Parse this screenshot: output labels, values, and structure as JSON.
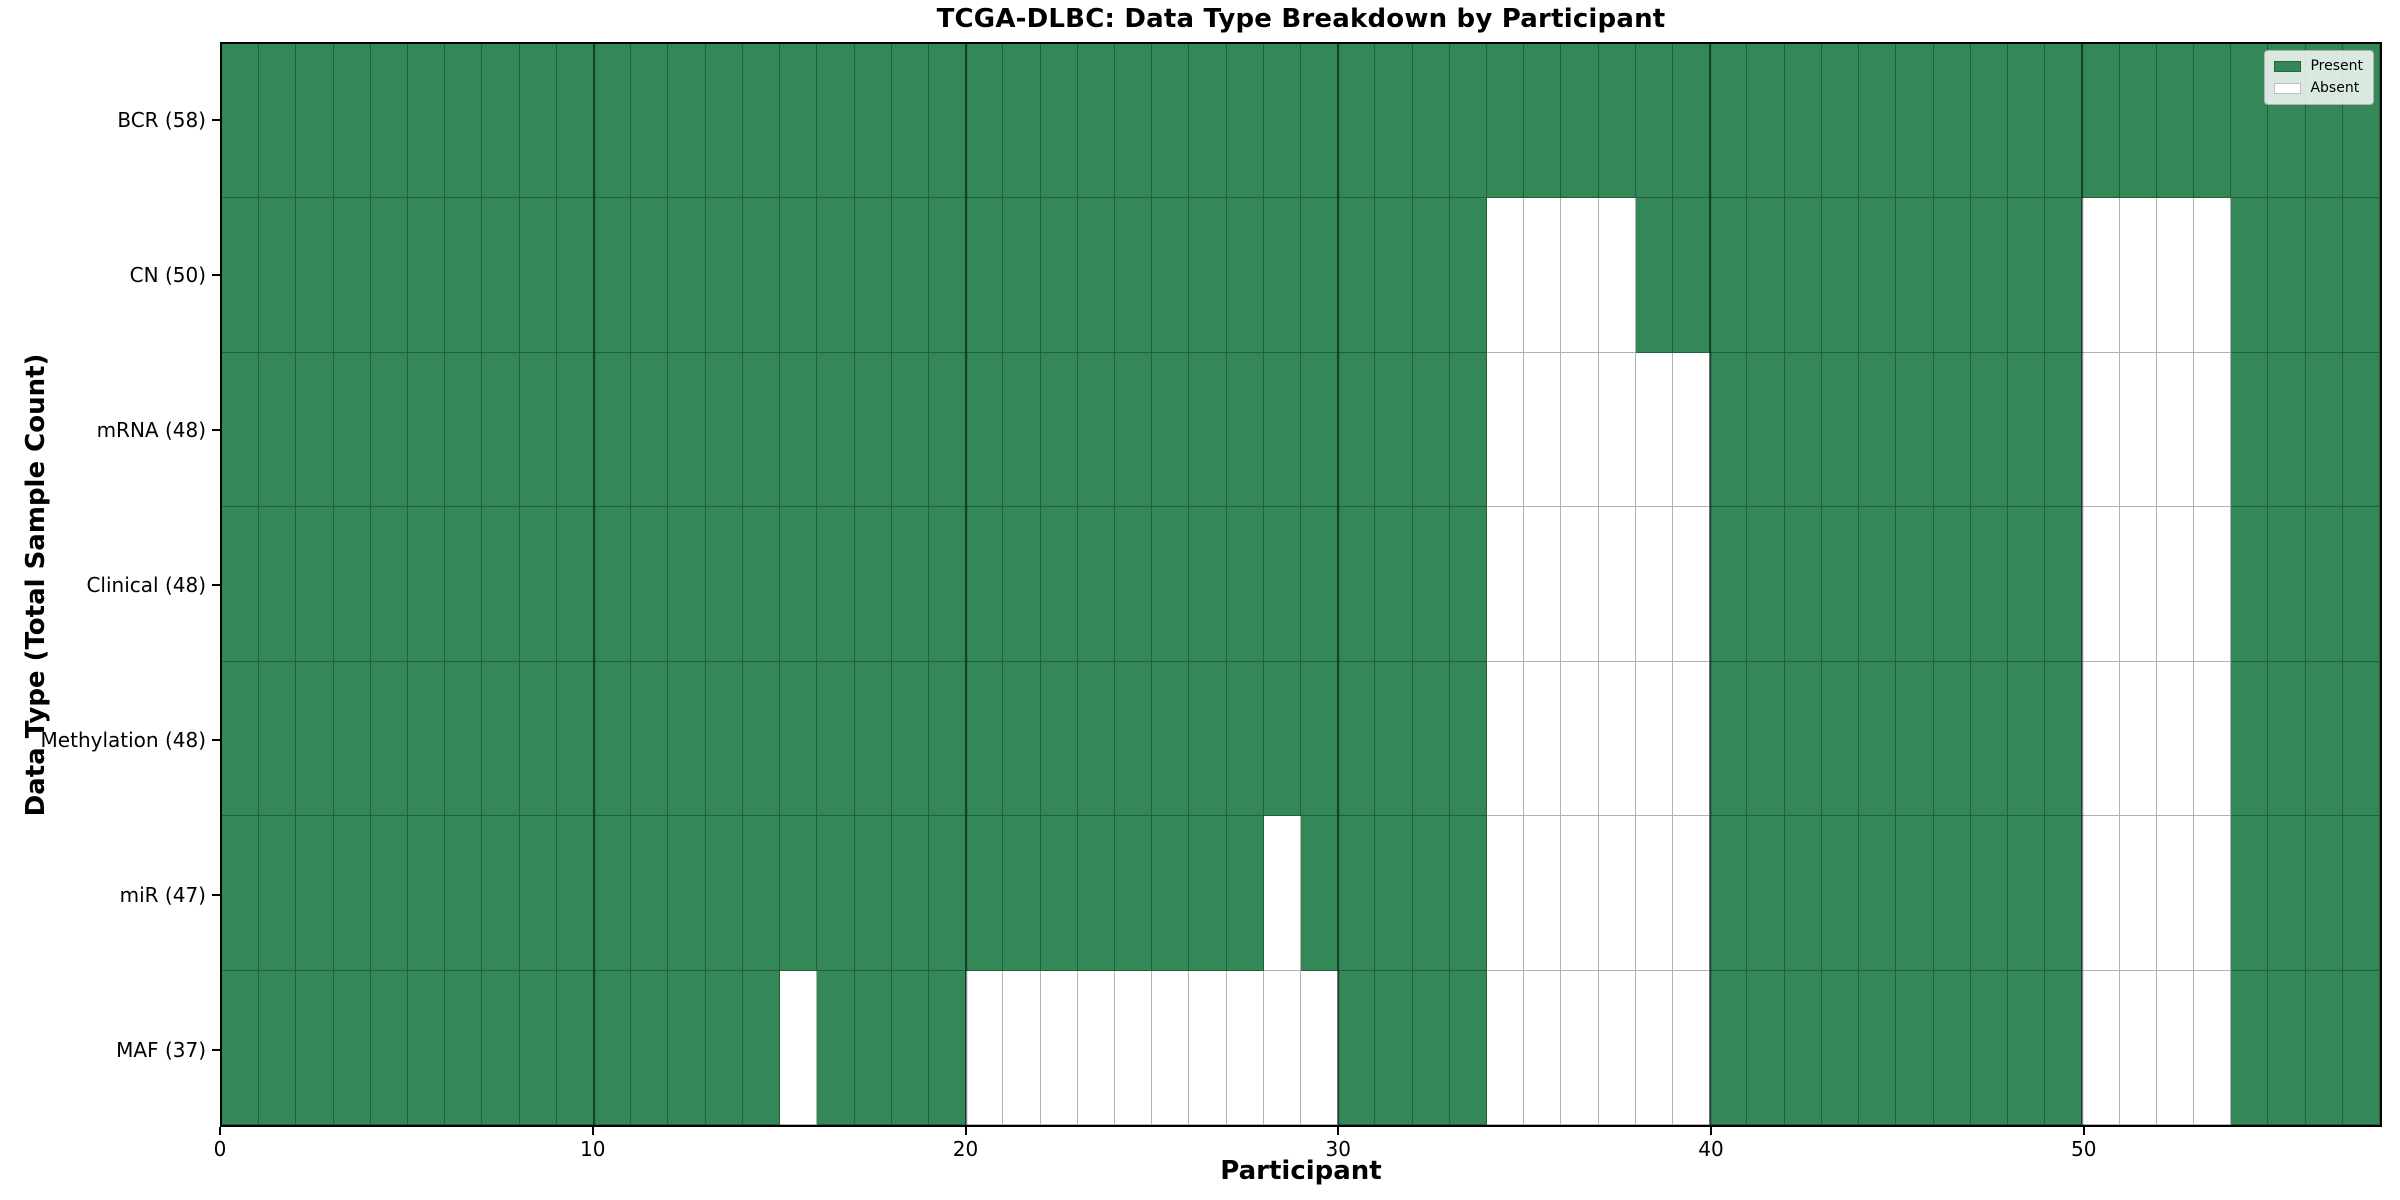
{
  "figure": {
    "title": "TCGA-DLBC: Data Type Breakdown by Participant",
    "x_axis": {
      "label": "Participant",
      "ticks": [
        0,
        10,
        20,
        30,
        40,
        50
      ],
      "range": [
        0,
        58
      ]
    },
    "y_axis": {
      "label": "Data Type (Total Sample Count)"
    },
    "legend": {
      "items": [
        {
          "label": "Present",
          "color": "#348857"
        },
        {
          "label": "Absent",
          "color": "#ffffff"
        }
      ]
    }
  },
  "colors": {
    "present": "#348857",
    "absent": "#ffffff",
    "cell_edge": "rgba(0,0,0,0.30)",
    "major_gridline": "rgba(0,0,0,0.50)",
    "spine": "#000000",
    "legend_background": "rgba(255,255,255,0.82)",
    "legend_border": "#b0b0b0"
  },
  "chart_data": {
    "type": "heatmap",
    "title": "TCGA-DLBC: Data Type Breakdown by Participant",
    "xlabel": "Participant",
    "ylabel": "Data Type (Total Sample Count)",
    "x_range": [
      0,
      58
    ],
    "n_participants": 58,
    "x_ticks": [
      0,
      10,
      20,
      30,
      40,
      50
    ],
    "grid": "major vertical gridlines at x ticks, cell edges outlined",
    "legend_entries": [
      "Present",
      "Absent"
    ],
    "legend_position": "upper right",
    "value_encoding": {
      "present": 1,
      "absent": 0
    },
    "rows": [
      {
        "label": "BCR (58)",
        "data_type": "BCR",
        "total_samples": 58,
        "absent_participants": []
      },
      {
        "label": "CN (50)",
        "data_type": "CN",
        "total_samples": 50,
        "absent_participants": [
          34,
          35,
          36,
          37,
          50,
          51,
          52,
          53
        ]
      },
      {
        "label": "mRNA (48)",
        "data_type": "mRNA",
        "total_samples": 48,
        "absent_participants": [
          34,
          35,
          36,
          37,
          38,
          39,
          50,
          51,
          52,
          53
        ]
      },
      {
        "label": "Clinical (48)",
        "data_type": "Clinical",
        "total_samples": 48,
        "absent_participants": [
          34,
          35,
          36,
          37,
          38,
          39,
          50,
          51,
          52,
          53
        ]
      },
      {
        "label": "Methylation (48)",
        "data_type": "Methylation",
        "total_samples": 48,
        "absent_participants": [
          34,
          35,
          36,
          37,
          38,
          39,
          50,
          51,
          52,
          53
        ]
      },
      {
        "label": "miR (47)",
        "data_type": "miR",
        "total_samples": 47,
        "absent_participants": [
          28,
          34,
          35,
          36,
          37,
          38,
          39,
          50,
          51,
          52,
          53
        ]
      },
      {
        "label": "MAF (37)",
        "data_type": "MAF",
        "total_samples": 37,
        "absent_participants": [
          15,
          20,
          21,
          22,
          23,
          24,
          25,
          26,
          27,
          28,
          29,
          34,
          35,
          36,
          37,
          38,
          39,
          50,
          51,
          52,
          53
        ]
      }
    ]
  }
}
